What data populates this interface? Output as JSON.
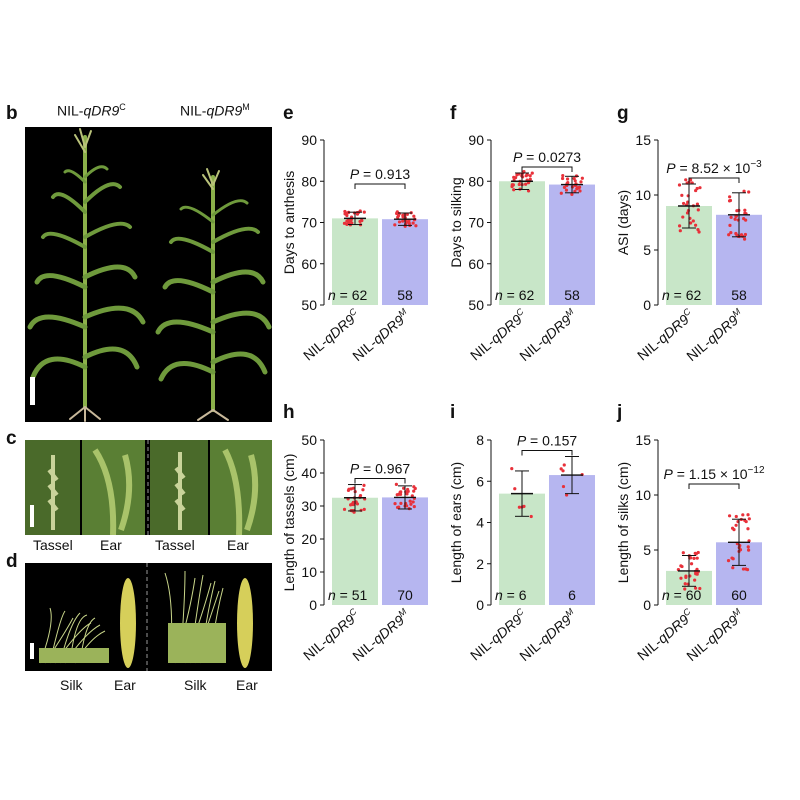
{
  "panel_labels": {
    "b": "b",
    "c": "c",
    "d": "d",
    "e": "e",
    "f": "f",
    "g": "g",
    "h": "h",
    "i": "i",
    "j": "j"
  },
  "photos": {
    "b": {
      "left_label_prefix": "NIL-",
      "left_label_italic": "qDR9",
      "left_label_sup": "C",
      "right_label_prefix": "NIL-",
      "right_label_italic": "qDR9",
      "right_label_sup": "M"
    },
    "c": {
      "labels": [
        "Tassel",
        "Ear",
        "Tassel",
        "Ear"
      ]
    },
    "d": {
      "labels": [
        "Silk",
        "Ear",
        "Silk",
        "Ear"
      ]
    }
  },
  "colors": {
    "green": "#c8e6c8",
    "blue": "#b6b6f0",
    "dots": "#e8313a",
    "photo_bg": "#000000"
  },
  "group_label": {
    "prefix": "NIL-",
    "italic": "qDR9",
    "sup_left": "C",
    "sup_right": "M"
  },
  "chart_data": [
    {
      "panel": "e",
      "type": "bar",
      "ylabel": "Days to anthesis",
      "ylim": [
        50,
        90
      ],
      "yticks": [
        50,
        60,
        70,
        80,
        90
      ],
      "categories": [
        "NIL-qDR9C",
        "NIL-qDR9M"
      ],
      "values": [
        71,
        70.8
      ],
      "error": [
        1.5,
        1.5
      ],
      "n": [
        "62",
        "58"
      ],
      "p_prefix": "P",
      "p_text": " = 0.913"
    },
    {
      "panel": "f",
      "type": "bar",
      "ylabel": "Days to silking",
      "ylim": [
        50,
        90
      ],
      "yticks": [
        50,
        60,
        70,
        80,
        90
      ],
      "categories": [
        "NIL-qDR9C",
        "NIL-qDR9M"
      ],
      "values": [
        80,
        79.2
      ],
      "error": [
        2,
        2
      ],
      "n": [
        "62",
        "58"
      ],
      "p_prefix": "P",
      "p_text": " = 0.0273"
    },
    {
      "panel": "g",
      "type": "bar",
      "ylabel": "ASI (days)",
      "ylim": [
        0,
        15
      ],
      "yticks": [
        0,
        5,
        10,
        15
      ],
      "categories": [
        "NIL-qDR9C",
        "NIL-qDR9M"
      ],
      "values": [
        9,
        8.2
      ],
      "error": [
        2,
        2
      ],
      "n": [
        "62",
        "58"
      ],
      "p_prefix": "P",
      "p_text": " = 8.52 × 10",
      "p_exp": "−3"
    },
    {
      "panel": "h",
      "type": "bar",
      "ylabel": "Length of tassels (cm)",
      "ylim": [
        0,
        50
      ],
      "yticks": [
        0,
        10,
        20,
        30,
        40,
        50
      ],
      "categories": [
        "NIL-qDR9C",
        "NIL-qDR9M"
      ],
      "values": [
        32.5,
        32.6
      ],
      "error": [
        4,
        3.5
      ],
      "n": [
        "51",
        "70"
      ],
      "p_prefix": "P",
      "p_text": " = 0.967"
    },
    {
      "panel": "i",
      "type": "bar",
      "ylabel": "Length of ears (cm)",
      "ylim": [
        0,
        8
      ],
      "yticks": [
        0,
        2,
        4,
        6,
        8
      ],
      "categories": [
        "NIL-qDR9C",
        "NIL-qDR9M"
      ],
      "values": [
        5.4,
        6.3
      ],
      "error": [
        1.1,
        0.9
      ],
      "n": [
        "6",
        "6"
      ],
      "p_prefix": "P",
      "p_text": " = 0.157"
    },
    {
      "panel": "j",
      "type": "bar",
      "ylabel": "Length of silks (cm)",
      "ylim": [
        0,
        15
      ],
      "yticks": [
        0,
        5,
        10,
        15
      ],
      "categories": [
        "NIL-qDR9C",
        "NIL-qDR9M"
      ],
      "values": [
        3.1,
        5.7
      ],
      "error": [
        1.4,
        2.1
      ],
      "n": [
        "60",
        "60"
      ],
      "p_prefix": "P",
      "p_text": " = 1.15 × 10",
      "p_exp": "−12"
    }
  ]
}
